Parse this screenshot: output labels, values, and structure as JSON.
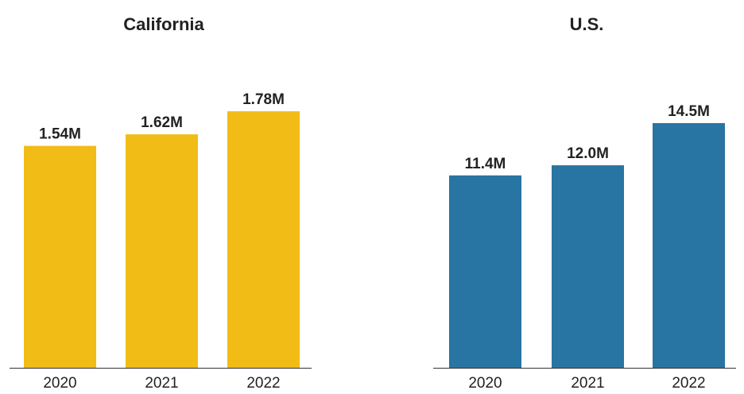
{
  "chart_data": [
    {
      "type": "bar",
      "title": "California",
      "categories": [
        "2020",
        "2021",
        "2022"
      ],
      "values": [
        1.54,
        1.62,
        1.78
      ],
      "value_labels": [
        "1.54M",
        "1.62M",
        "1.78M"
      ],
      "unit": "M",
      "ylim": [
        0,
        2.26
      ],
      "color": "#F2BC17",
      "grid": false
    },
    {
      "type": "bar",
      "title": "U.S.",
      "categories": [
        "2020",
        "2021",
        "2022"
      ],
      "values": [
        11.4,
        12.0,
        14.5
      ],
      "value_labels": [
        "11.4M",
        "12.0M",
        "14.5M"
      ],
      "unit": "M",
      "ylim": [
        0,
        19.3
      ],
      "color": "#2874A3",
      "grid": false
    }
  ]
}
